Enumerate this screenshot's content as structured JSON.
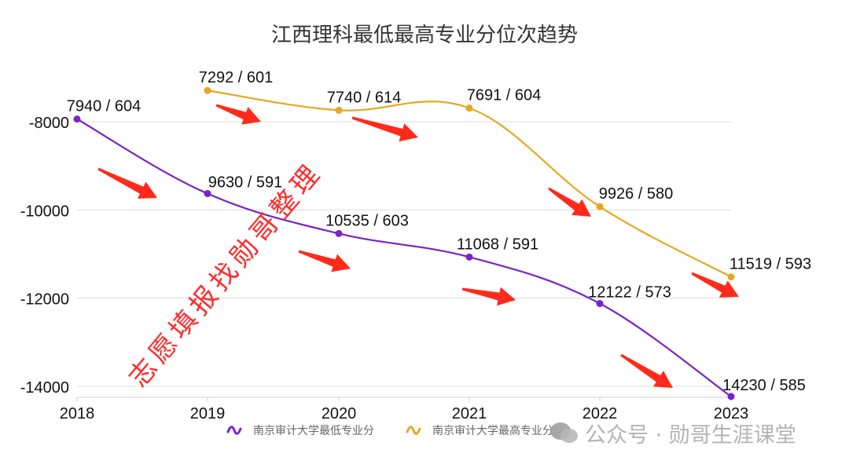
{
  "chart": {
    "title": "江西理科最低最高专业分位次趋势",
    "yaxis_ticks": [
      "-8000",
      "-10000",
      "-12000",
      "-14000"
    ],
    "xaxis_ticks": [
      "2018",
      "2019",
      "2020",
      "2021",
      "2022",
      "2023"
    ],
    "legend": [
      {
        "label": "南京审计大学最低专业分",
        "color": "#7b22c9"
      },
      {
        "label": "南京审计大学最高专业分",
        "color": "#e6a820"
      }
    ],
    "point_labels": {
      "min": [
        "7940 / 604",
        "9630 / 591",
        "10535 / 603",
        "11068 / 591",
        "12122 / 573",
        "14230 / 585"
      ],
      "max": [
        "7292 / 601",
        "7740 / 614",
        "7691 / 604",
        "9926 / 580",
        "11519 / 593"
      ]
    },
    "diagonal_watermark": "志愿填报找勋哥整理",
    "account_watermark": "公众号 · 勋哥生涯课堂",
    "arrow_color": "#ff2a1a"
  },
  "chart_data": {
    "type": "line",
    "title": "江西理科最低最高专业分位次趋势",
    "xlabel": "",
    "ylabel": "",
    "categories": [
      "2018",
      "2019",
      "2020",
      "2021",
      "2022",
      "2023"
    ],
    "ylim": [
      -14200,
      -7300
    ],
    "yticks": [
      -8000,
      -10000,
      -12000,
      -14000
    ],
    "grid": true,
    "legend_position": "bottom",
    "series": [
      {
        "name": "南京审计大学最低专业分",
        "color": "#7b22c9",
        "values": [
          -7940,
          -9630,
          -10535,
          -11068,
          -12122,
          -14230
        ],
        "ranks": [
          7940,
          9630,
          10535,
          11068,
          12122,
          14230
        ],
        "scores": [
          604,
          591,
          603,
          591,
          573,
          585
        ]
      },
      {
        "name": "南京审计大学最高专业分",
        "color": "#e6a820",
        "values": [
          null,
          -7292,
          -7740,
          -7691,
          -9926,
          -11519
        ],
        "ranks": [
          null,
          7292,
          7740,
          7691,
          9926,
          11519
        ],
        "scores": [
          null,
          601,
          614,
          604,
          580,
          593
        ]
      }
    ],
    "annotations": [
      "7940 / 604",
      "9630 / 591",
      "10535 / 603",
      "11068 / 591",
      "12122 / 573",
      "14230 / 585",
      "7292 / 601",
      "7740 / 614",
      "7691 / 604",
      "9926 / 580",
      "11519 / 593"
    ]
  }
}
